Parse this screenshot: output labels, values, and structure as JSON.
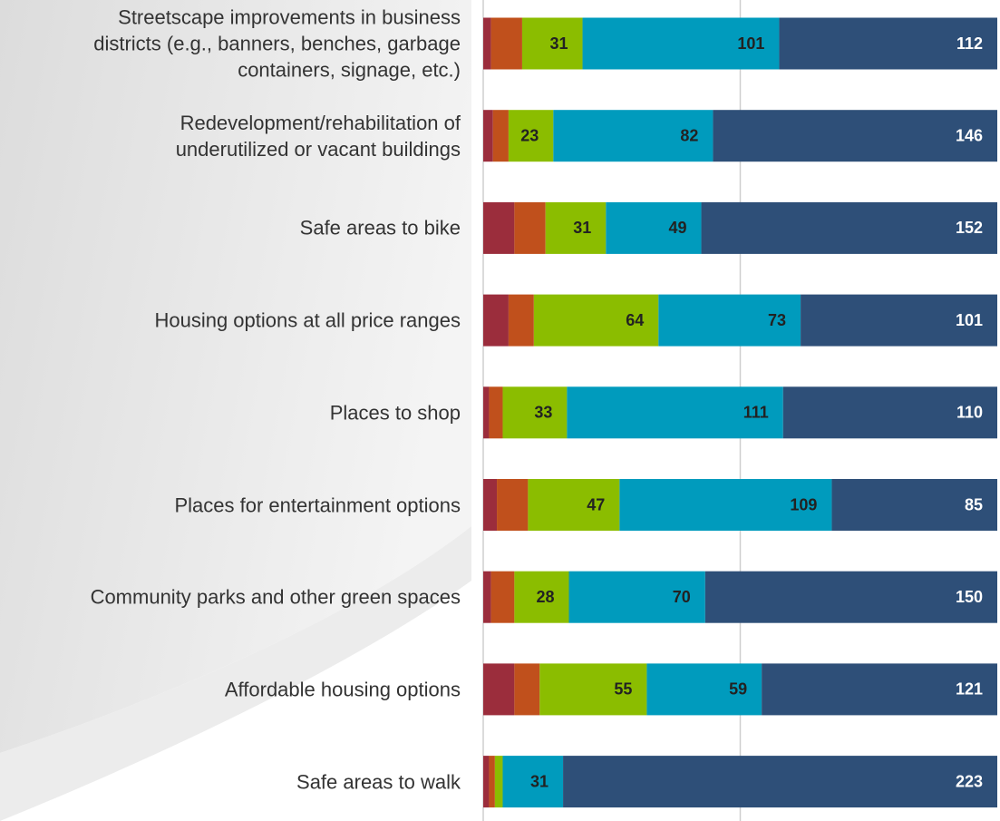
{
  "chart_data": {
    "type": "stacked_barh",
    "categories": [
      "Streetscape improvements in business\ndistricts (e.g., banners, benches, garbage\ncontainers, signage, etc.)",
      "Redevelopment/rehabilitation of\nunderutilized or vacant buildings",
      "Safe areas to bike",
      "Housing options at all price ranges",
      "Places to shop",
      "Places for entertainment options",
      "Community parks and other green spaces",
      "Affordable housing options",
      "Safe areas to walk"
    ],
    "series": [
      {
        "color": "#9b2d3c",
        "values": [
          4,
          5,
          16,
          13,
          3,
          7,
          4,
          16,
          3
        ]
      },
      {
        "color": "#c0501c",
        "values": [
          16,
          8,
          16,
          13,
          7,
          16,
          12,
          13,
          3
        ]
      },
      {
        "color": "#8bbd00",
        "label_color": "#222222",
        "values": [
          31,
          23,
          31,
          64,
          33,
          47,
          28,
          55,
          4
        ],
        "value_labels": [
          "31",
          "23",
          "31",
          "64",
          "33",
          "47",
          "28",
          "55",
          null
        ]
      },
      {
        "color": "#009bbd",
        "label_color": "#222222",
        "values": [
          101,
          82,
          49,
          73,
          111,
          109,
          70,
          59,
          31
        ],
        "value_labels": [
          "101",
          "82",
          "49",
          "73",
          "111",
          "109",
          "70",
          "59",
          "31"
        ]
      },
      {
        "color": "#2e4f78",
        "label_color": "#ffffff",
        "values": [
          112,
          146,
          152,
          101,
          110,
          85,
          150,
          121,
          223
        ],
        "value_labels": [
          "112",
          "146",
          "152",
          "101",
          "110",
          "85",
          "150",
          "121",
          "223"
        ]
      }
    ],
    "xlim": [
      0,
      264
    ],
    "xticks": [
      0,
      132
    ],
    "xtick_labels": false,
    "grid": true
  }
}
